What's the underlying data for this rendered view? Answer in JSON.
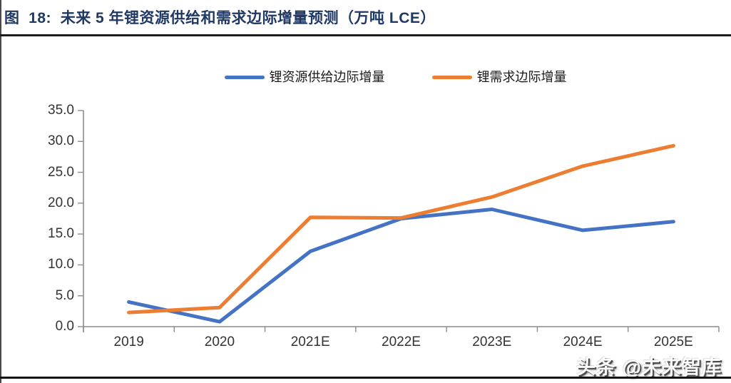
{
  "figure": {
    "title": "图  18:  未来 5 年锂资源供给和需求边际增量预测（万吨 LCE）",
    "watermark": "头条 @未来智库"
  },
  "chart_data": {
    "type": "line",
    "title": "未来 5 年锂资源供给和需求边际增量预测（万吨 LCE）",
    "categories": [
      "2019",
      "2020",
      "2021E",
      "2022E",
      "2023E",
      "2024E",
      "2025E"
    ],
    "series": [
      {
        "name": "锂资源供给边际增量",
        "color": "#4472C4",
        "values": [
          4.0,
          0.8,
          12.2,
          17.5,
          19.0,
          15.6,
          17.0
        ]
      },
      {
        "name": "锂需求边际增量",
        "color": "#ED7D31",
        "values": [
          2.3,
          3.1,
          17.7,
          17.6,
          21.0,
          26.0,
          29.3
        ]
      }
    ],
    "xlabel": "",
    "ylabel": "",
    "ylim": [
      0,
      35
    ],
    "ytick_labels": [
      "0.0",
      "5.0",
      "10.0",
      "15.0",
      "20.0",
      "25.0",
      "30.0",
      "35.0"
    ],
    "legend_position": "top",
    "grid": false,
    "axis_color": "#8c8c8c",
    "tick_label_color": "#333333",
    "line_width": 5
  }
}
